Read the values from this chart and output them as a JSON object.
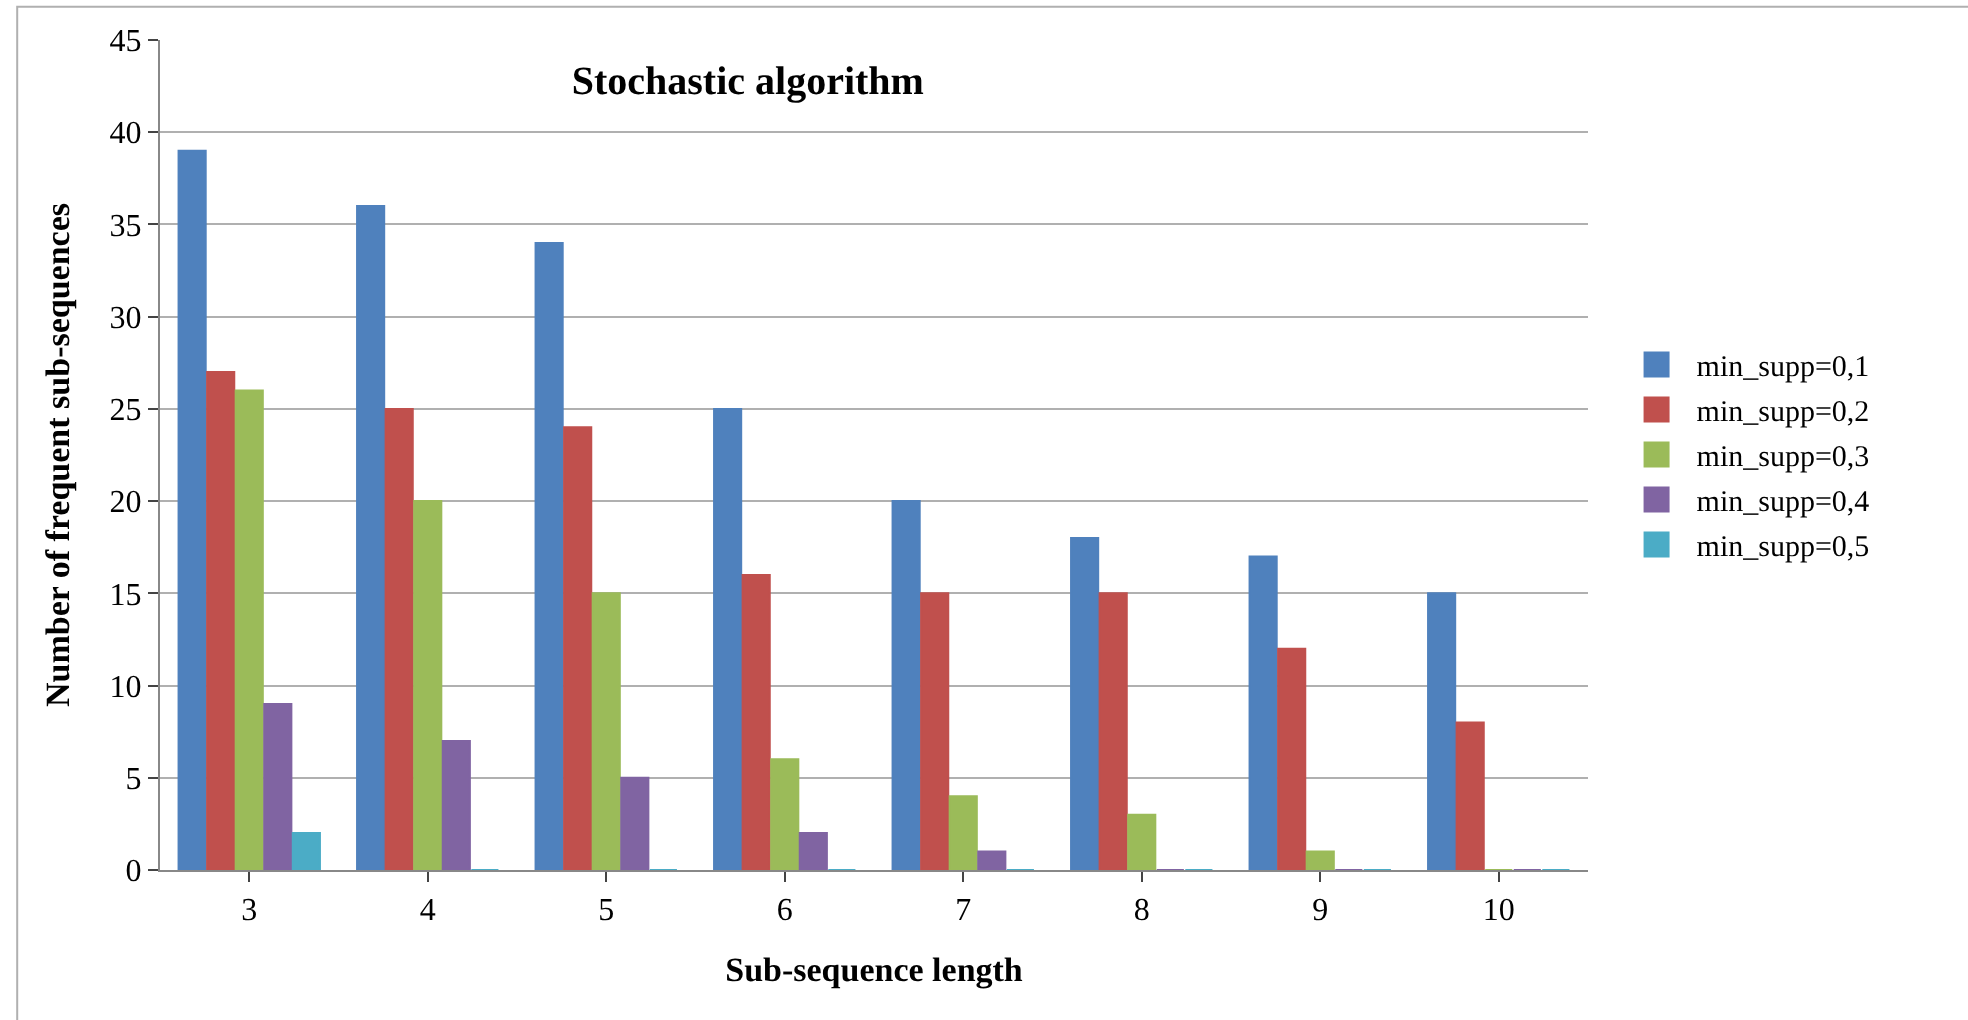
{
  "chart_data": {
    "type": "bar",
    "title": "Stochastic algorithm",
    "xlabel": "Sub-sequence length",
    "ylabel": "Number of frequent sub-sequences",
    "categories": [
      "3",
      "4",
      "5",
      "6",
      "7",
      "8",
      "9",
      "10"
    ],
    "series": [
      {
        "name": "min_supp=0,1",
        "color": "#4f81bd",
        "values": [
          39,
          36,
          34,
          25,
          20,
          18,
          17,
          15
        ]
      },
      {
        "name": "min_supp=0,2",
        "color": "#c0504d",
        "values": [
          27,
          25,
          24,
          16,
          15,
          15,
          12,
          8
        ]
      },
      {
        "name": "min_supp=0,3",
        "color": "#9bbb59",
        "values": [
          26,
          20,
          15,
          6,
          4,
          3,
          1,
          0
        ]
      },
      {
        "name": "min_supp=0,4",
        "color": "#8064a2",
        "values": [
          9,
          7,
          5,
          2,
          1,
          0,
          0,
          0
        ]
      },
      {
        "name": "min_supp=0,5",
        "color": "#4bacc6",
        "values": [
          2,
          0,
          0,
          0,
          0,
          0,
          0,
          0
        ]
      }
    ],
    "ylim": [
      0,
      45
    ],
    "yticks": [
      0,
      5,
      10,
      15,
      20,
      25,
      30,
      35,
      40,
      45
    ],
    "grid": "y",
    "legend": "right"
  }
}
